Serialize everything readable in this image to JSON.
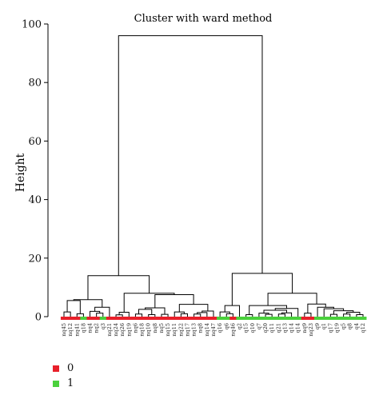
{
  "chart_data": {
    "type": "dendrogram",
    "title": "Cluster with ward method",
    "ylabel": "Height",
    "xlabel": "",
    "ylim": [
      0,
      100
    ],
    "yticks": [
      0,
      20,
      40,
      60,
      80,
      100
    ],
    "leaves": [
      {
        "label": "nq45",
        "group": "0"
      },
      {
        "label": "nq12",
        "group": "0"
      },
      {
        "label": "nq41",
        "group": "0"
      },
      {
        "label": "q18",
        "group": "1"
      },
      {
        "label": "nq4",
        "group": "0"
      },
      {
        "label": "nq2",
        "group": "0"
      },
      {
        "label": "q3",
        "group": "1"
      },
      {
        "label": "nq21",
        "group": "0"
      },
      {
        "label": "nq24",
        "group": "0"
      },
      {
        "label": "nq26",
        "group": "0"
      },
      {
        "label": "nq19",
        "group": "0"
      },
      {
        "label": "nq6",
        "group": "0"
      },
      {
        "label": "nq18",
        "group": "0"
      },
      {
        "label": "nq10",
        "group": "0"
      },
      {
        "label": "nq8",
        "group": "0"
      },
      {
        "label": "nq5",
        "group": "0"
      },
      {
        "label": "nq15",
        "group": "0"
      },
      {
        "label": "nq11",
        "group": "0"
      },
      {
        "label": "nq22",
        "group": "0"
      },
      {
        "label": "nq17",
        "group": "0"
      },
      {
        "label": "nq13",
        "group": "0"
      },
      {
        "label": "nq8",
        "group": "0"
      },
      {
        "label": "nq14",
        "group": "0"
      },
      {
        "label": "nq47",
        "group": "0"
      },
      {
        "label": "q16",
        "group": "1"
      },
      {
        "label": "q6",
        "group": "1"
      },
      {
        "label": "nq46",
        "group": "0"
      },
      {
        "label": "q2",
        "group": "1"
      },
      {
        "label": "q15",
        "group": "1"
      },
      {
        "label": "q10",
        "group": "1"
      },
      {
        "label": "q7",
        "group": "1"
      },
      {
        "label": "q20",
        "group": "1"
      },
      {
        "label": "q11",
        "group": "1"
      },
      {
        "label": "q21",
        "group": "1"
      },
      {
        "label": "q13",
        "group": "1"
      },
      {
        "label": "q14",
        "group": "1"
      },
      {
        "label": "q14",
        "group": "1"
      },
      {
        "label": "nq9",
        "group": "0"
      },
      {
        "label": "nq23",
        "group": "0"
      },
      {
        "label": "q9",
        "group": "1"
      },
      {
        "label": "q1",
        "group": "1"
      },
      {
        "label": "q17",
        "group": "1"
      },
      {
        "label": "q19",
        "group": "1"
      },
      {
        "label": "q5",
        "group": "1"
      },
      {
        "label": "q8",
        "group": "1"
      },
      {
        "label": "q4",
        "group": "1"
      },
      {
        "label": "q12",
        "group": "1"
      }
    ],
    "merges": [
      {
        "id": "A1",
        "children": [
          2,
          3
        ],
        "height": 1.0
      },
      {
        "id": "A2",
        "children": [
          0,
          1
        ],
        "height": 1.6
      },
      {
        "id": "A3",
        "children": [
          "A2",
          "A1"
        ],
        "height": 5.5
      },
      {
        "id": "A4",
        "children": [
          5,
          6
        ],
        "height": 1.2
      },
      {
        "id": "A5",
        "children": [
          4,
          "A4"
        ],
        "height": 1.8
      },
      {
        "id": "A6",
        "children": [
          "A5",
          7
        ],
        "height": 3.2
      },
      {
        "id": "A",
        "children": [
          "A3",
          "A6"
        ],
        "height": 5.8
      },
      {
        "id": "B1",
        "children": [
          8,
          9
        ],
        "height": 0.6
      },
      {
        "id": "B2",
        "children": [
          "B1",
          10
        ],
        "height": 1.5
      },
      {
        "id": "B3",
        "children": [
          11,
          12
        ],
        "height": 0.9
      },
      {
        "id": "B4",
        "children": [
          13,
          14
        ],
        "height": 0.7
      },
      {
        "id": "B5",
        "children": [
          "B3",
          "B4"
        ],
        "height": 2.5
      },
      {
        "id": "B6",
        "children": [
          15,
          16
        ],
        "height": 0.8
      },
      {
        "id": "B7",
        "children": [
          "B5",
          "B6"
        ],
        "height": 3.0
      },
      {
        "id": "B8",
        "children": [
          18,
          19
        ],
        "height": 1.0
      },
      {
        "id": "B9",
        "children": [
          17,
          "B8"
        ],
        "height": 1.6
      },
      {
        "id": "B10",
        "children": [
          20,
          21
        ],
        "height": 0.9
      },
      {
        "id": "B11",
        "children": [
          "B10",
          22
        ],
        "height": 1.4
      },
      {
        "id": "B12",
        "children": [
          "B11",
          23
        ],
        "height": 1.9
      },
      {
        "id": "B13",
        "children": [
          "B9",
          "B12"
        ],
        "height": 4.2
      },
      {
        "id": "B14",
        "children": [
          "B7",
          "B13"
        ],
        "height": 7.5
      },
      {
        "id": "B",
        "children": [
          "B2",
          "B14"
        ],
        "height": 8.0
      },
      {
        "id": "L",
        "children": [
          "A",
          "B"
        ],
        "height": 14.0
      },
      {
        "id": "C1",
        "children": [
          25,
          26
        ],
        "height": 1.0
      },
      {
        "id": "C2",
        "children": [
          24,
          "C1"
        ],
        "height": 1.6
      },
      {
        "id": "C3",
        "children": [
          "C2",
          27
        ],
        "height": 3.8
      },
      {
        "id": "D1",
        "children": [
          28,
          29
        ],
        "height": 0.7
      },
      {
        "id": "D2",
        "children": [
          31,
          32
        ],
        "height": 0.8
      },
      {
        "id": "D3",
        "children": [
          30,
          "D2"
        ],
        "height": 1.2
      },
      {
        "id": "D4",
        "children": [
          33,
          34
        ],
        "height": 0.9
      },
      {
        "id": "D5",
        "children": [
          "D4",
          35
        ],
        "height": 1.3
      },
      {
        "id": "D6",
        "children": [
          "D3",
          "D5"
        ],
        "height": 2.2
      },
      {
        "id": "D7",
        "children": [
          "D6",
          36
        ],
        "height": 2.8
      },
      {
        "id": "D",
        "children": [
          "D1",
          "D7"
        ],
        "height": 3.8
      },
      {
        "id": "E1",
        "children": [
          37,
          38
        ],
        "height": 1.2
      },
      {
        "id": "E2",
        "children": [
          41,
          42
        ],
        "height": 0.8
      },
      {
        "id": "E3",
        "children": [
          43,
          44
        ],
        "height": 0.9
      },
      {
        "id": "E4",
        "children": [
          45,
          46
        ],
        "height": 0.7
      },
      {
        "id": "E5",
        "children": [
          "E3",
          "E4"
        ],
        "height": 1.5
      },
      {
        "id": "E6",
        "children": [
          "E2",
          "E5"
        ],
        "height": 2.0
      },
      {
        "id": "E7",
        "children": [
          40,
          "E6"
        ],
        "height": 2.7
      },
      {
        "id": "E8",
        "children": [
          39,
          "E7"
        ],
        "height": 3.2
      },
      {
        "id": "E",
        "children": [
          "E1",
          "E8"
        ],
        "height": 4.3
      },
      {
        "id": "F",
        "children": [
          "D",
          "E"
        ],
        "height": 8.0
      },
      {
        "id": "R",
        "children": [
          "C3",
          "F"
        ],
        "height": 14.8
      },
      {
        "id": "ROOT",
        "children": [
          "L",
          "R"
        ],
        "height": 96.0
      }
    ],
    "legend": {
      "placement": "bottom-left",
      "items": [
        {
          "label": "0",
          "color": "#e8202a"
        },
        {
          "label": "1",
          "color": "#4ad13c"
        }
      ]
    }
  }
}
